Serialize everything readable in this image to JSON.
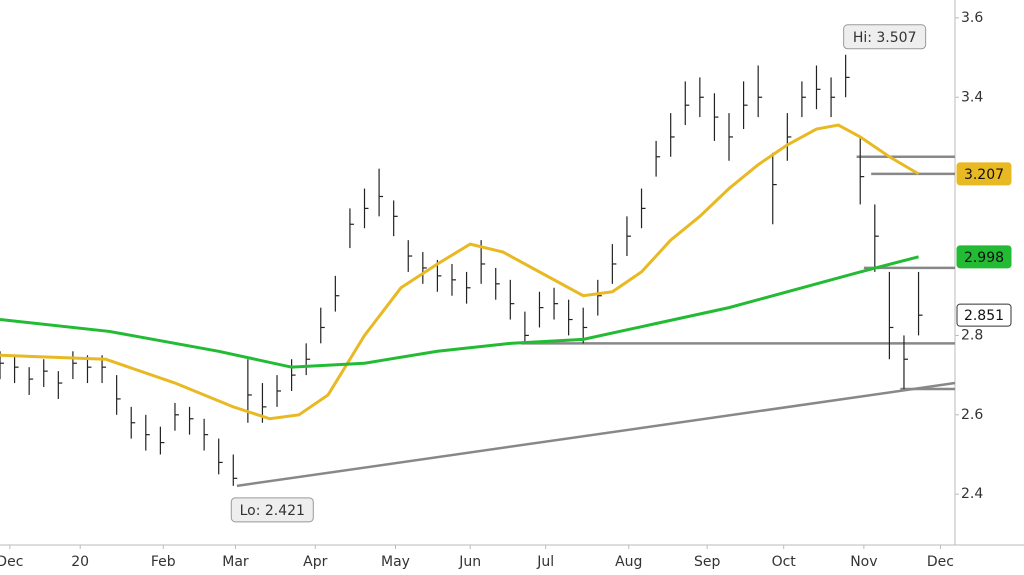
{
  "chart_data": {
    "type": "ohlc",
    "x": [
      0,
      4,
      8,
      12,
      16,
      20,
      24,
      28,
      32,
      36,
      40,
      44,
      48,
      52,
      56,
      60,
      64,
      68,
      72,
      76,
      80,
      84,
      88,
      92,
      96,
      100,
      104,
      108,
      112,
      116,
      120,
      124,
      128,
      132,
      136,
      140,
      144,
      148,
      152,
      156,
      160,
      164,
      168,
      172,
      176,
      180,
      184,
      188,
      192,
      196,
      200,
      204,
      208,
      212,
      216,
      220,
      224,
      228,
      232,
      236,
      240,
      244,
      248,
      252
    ],
    "high": [
      2.76,
      2.75,
      2.72,
      2.74,
      2.71,
      2.76,
      2.75,
      2.75,
      2.7,
      2.62,
      2.6,
      2.57,
      2.63,
      2.62,
      2.59,
      2.54,
      2.5,
      2.74,
      2.68,
      2.7,
      2.74,
      2.78,
      2.87,
      2.95,
      3.12,
      3.17,
      3.22,
      3.14,
      3.04,
      3.01,
      2.99,
      2.98,
      2.96,
      3.04,
      2.97,
      2.94,
      2.86,
      2.91,
      2.92,
      2.89,
      2.87,
      2.94,
      3.03,
      3.1,
      3.17,
      3.29,
      3.36,
      3.44,
      3.45,
      3.41,
      3.36,
      3.44,
      3.48,
      3.26,
      3.36,
      3.44,
      3.48,
      3.45,
      3.507,
      3.3,
      3.13,
      2.96,
      2.8,
      2.96
    ],
    "low": [
      2.69,
      2.68,
      2.65,
      2.67,
      2.64,
      2.69,
      2.68,
      2.68,
      2.6,
      2.54,
      2.51,
      2.5,
      2.56,
      2.55,
      2.51,
      2.45,
      2.421,
      2.58,
      2.58,
      2.62,
      2.66,
      2.7,
      2.78,
      2.86,
      3.02,
      3.07,
      3.1,
      3.05,
      2.96,
      2.93,
      2.91,
      2.9,
      2.88,
      2.93,
      2.89,
      2.84,
      2.78,
      2.82,
      2.84,
      2.8,
      2.78,
      2.85,
      2.93,
      3.0,
      3.07,
      3.2,
      3.25,
      3.33,
      3.35,
      3.29,
      3.24,
      3.32,
      3.35,
      3.08,
      3.24,
      3.35,
      3.37,
      3.35,
      3.4,
      3.13,
      2.96,
      2.74,
      2.665,
      2.8
    ],
    "close": [
      2.73,
      2.72,
      2.69,
      2.71,
      2.68,
      2.73,
      2.72,
      2.72,
      2.64,
      2.58,
      2.55,
      2.53,
      2.6,
      2.59,
      2.55,
      2.48,
      2.44,
      2.65,
      2.62,
      2.66,
      2.7,
      2.74,
      2.82,
      2.9,
      3.08,
      3.12,
      3.15,
      3.1,
      3.0,
      2.97,
      2.95,
      2.94,
      2.92,
      2.98,
      2.93,
      2.88,
      2.8,
      2.87,
      2.88,
      2.84,
      2.82,
      2.9,
      2.98,
      3.05,
      3.12,
      3.25,
      3.3,
      3.38,
      3.4,
      3.35,
      3.3,
      3.38,
      3.4,
      3.18,
      3.3,
      3.4,
      3.42,
      3.4,
      3.45,
      3.2,
      3.05,
      2.82,
      2.74,
      2.851
    ],
    "color": "#222222",
    "series": [
      {
        "color": "#e8b923",
        "x": [
          0,
          29,
          48,
          64,
          74,
          82,
          90,
          100,
          110,
          120,
          129,
          138,
          150,
          160,
          168,
          176,
          184,
          192,
          200,
          208,
          216,
          224,
          230,
          236,
          244,
          252
        ],
        "values": [
          2.75,
          2.74,
          2.68,
          2.62,
          2.59,
          2.6,
          2.65,
          2.8,
          2.92,
          2.98,
          3.03,
          3.01,
          2.95,
          2.9,
          2.91,
          2.96,
          3.04,
          3.1,
          3.17,
          3.23,
          3.28,
          3.32,
          3.33,
          3.3,
          3.25,
          3.207
        ]
      },
      {
        "color": "#22bb33",
        "x": [
          0,
          30,
          60,
          80,
          100,
          120,
          140,
          160,
          180,
          200,
          220,
          236,
          252
        ],
        "values": [
          2.84,
          2.81,
          2.76,
          2.72,
          2.73,
          2.76,
          2.78,
          2.79,
          2.83,
          2.87,
          2.92,
          2.96,
          2.998
        ]
      }
    ],
    "lines": [
      {
        "x": [
          235,
          262
        ],
        "y": [
          3.25,
          3.25
        ]
      },
      {
        "x": [
          239,
          262
        ],
        "y": [
          3.207,
          3.207
        ]
      },
      {
        "x": [
          237,
          262
        ],
        "y": [
          2.97,
          2.97
        ]
      },
      {
        "x": [
          143,
          262
        ],
        "y": [
          2.78,
          2.78
        ]
      },
      {
        "x": [
          247,
          262
        ],
        "y": [
          2.665,
          2.665
        ]
      },
      {
        "x": [
          65,
          262
        ],
        "y": [
          2.421,
          2.68
        ]
      }
    ],
    "annotations": [
      {
        "text": "Hi: 3.507",
        "x": 232,
        "y": 3.507
      },
      {
        "text": "Lo: 2.421",
        "x": 64,
        "y": 2.421
      }
    ],
    "xlim": [
      0,
      262
    ],
    "ylim": [
      2.272,
      3.645
    ],
    "xticks": [
      {
        "value": 2.7,
        "label": "Dec"
      },
      {
        "value": 22,
        "label": "20"
      },
      {
        "value": 44.8,
        "label": "Feb"
      },
      {
        "value": 64.6,
        "label": "Mar"
      },
      {
        "value": 86.5,
        "label": "Apr"
      },
      {
        "value": 108.5,
        "label": "May"
      },
      {
        "value": 129,
        "label": "Jun"
      },
      {
        "value": 149.7,
        "label": "Jul"
      },
      {
        "value": 172.5,
        "label": "Aug"
      },
      {
        "value": 194,
        "label": "Sep"
      },
      {
        "value": 215,
        "label": "Oct"
      },
      {
        "value": 237,
        "label": "Nov"
      },
      {
        "value": 258,
        "label": "Dec"
      }
    ],
    "yticks": [
      2.4,
      2.6,
      2.8,
      3.4,
      3.6
    ]
  }
}
